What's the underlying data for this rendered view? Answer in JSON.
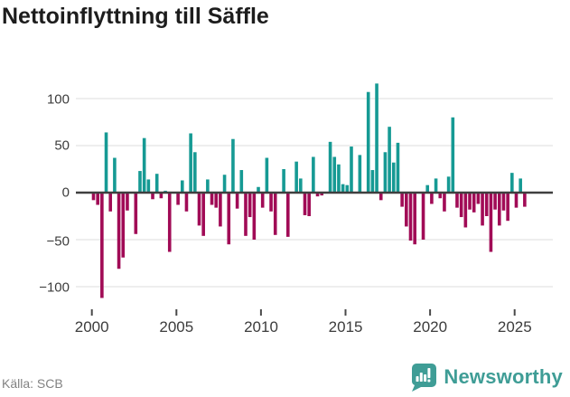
{
  "title": "Nettoinflyttning till Säffle",
  "source": {
    "label": "Källa: SCB"
  },
  "branding": {
    "name": "Newsworthy",
    "badge_icon": "bar-chart-speech-bubble-icon",
    "badge_color": "#3f9d96",
    "text_color": "#3f9d96"
  },
  "chart_data": {
    "type": "bar",
    "title": "Nettoinflyttning till Säffle",
    "xlabel": "",
    "ylabel": "",
    "frequency": "quarterly",
    "start_period": "2000Q1",
    "end_period": "2025Q3",
    "x_tick_labels": [
      "2000",
      "2005",
      "2010",
      "2015",
      "2020",
      "2025"
    ],
    "y_tick_labels": [
      "100",
      "50",
      "0",
      "−50",
      "−100"
    ],
    "y_ticks": [
      100,
      50,
      0,
      -50,
      -100
    ],
    "ylim": [
      -122,
      122
    ],
    "grid": "horizontal",
    "legend": "none",
    "positive_color": "#169a94",
    "negative_color": "#a10b56",
    "values": [
      -8,
      -13,
      -112,
      64,
      -20,
      37,
      -81,
      -69,
      -19,
      0,
      -44,
      23,
      58,
      14,
      -7,
      20,
      -6,
      2,
      -63,
      0,
      -13,
      13,
      -20,
      63,
      43,
      -35,
      -46,
      14,
      -13,
      -16,
      -36,
      19,
      -55,
      57,
      -17,
      24,
      -46,
      -26,
      -50,
      6,
      -16,
      37,
      -20,
      -45,
      0,
      25,
      -47,
      0,
      33,
      15,
      -24,
      -25,
      38,
      -4,
      -3,
      0,
      54,
      38,
      30,
      9,
      8,
      49,
      0,
      40,
      0,
      107,
      24,
      116,
      -8,
      43,
      70,
      32,
      53,
      -15,
      -36,
      -51,
      -55,
      0,
      -50,
      8,
      -12,
      15,
      -6,
      -20,
      17,
      80,
      -16,
      -26,
      -37,
      -18,
      -21,
      -12,
      -35,
      -25,
      -63,
      -18,
      -35,
      -19,
      -30,
      21,
      -16,
      15,
      -15
    ]
  }
}
